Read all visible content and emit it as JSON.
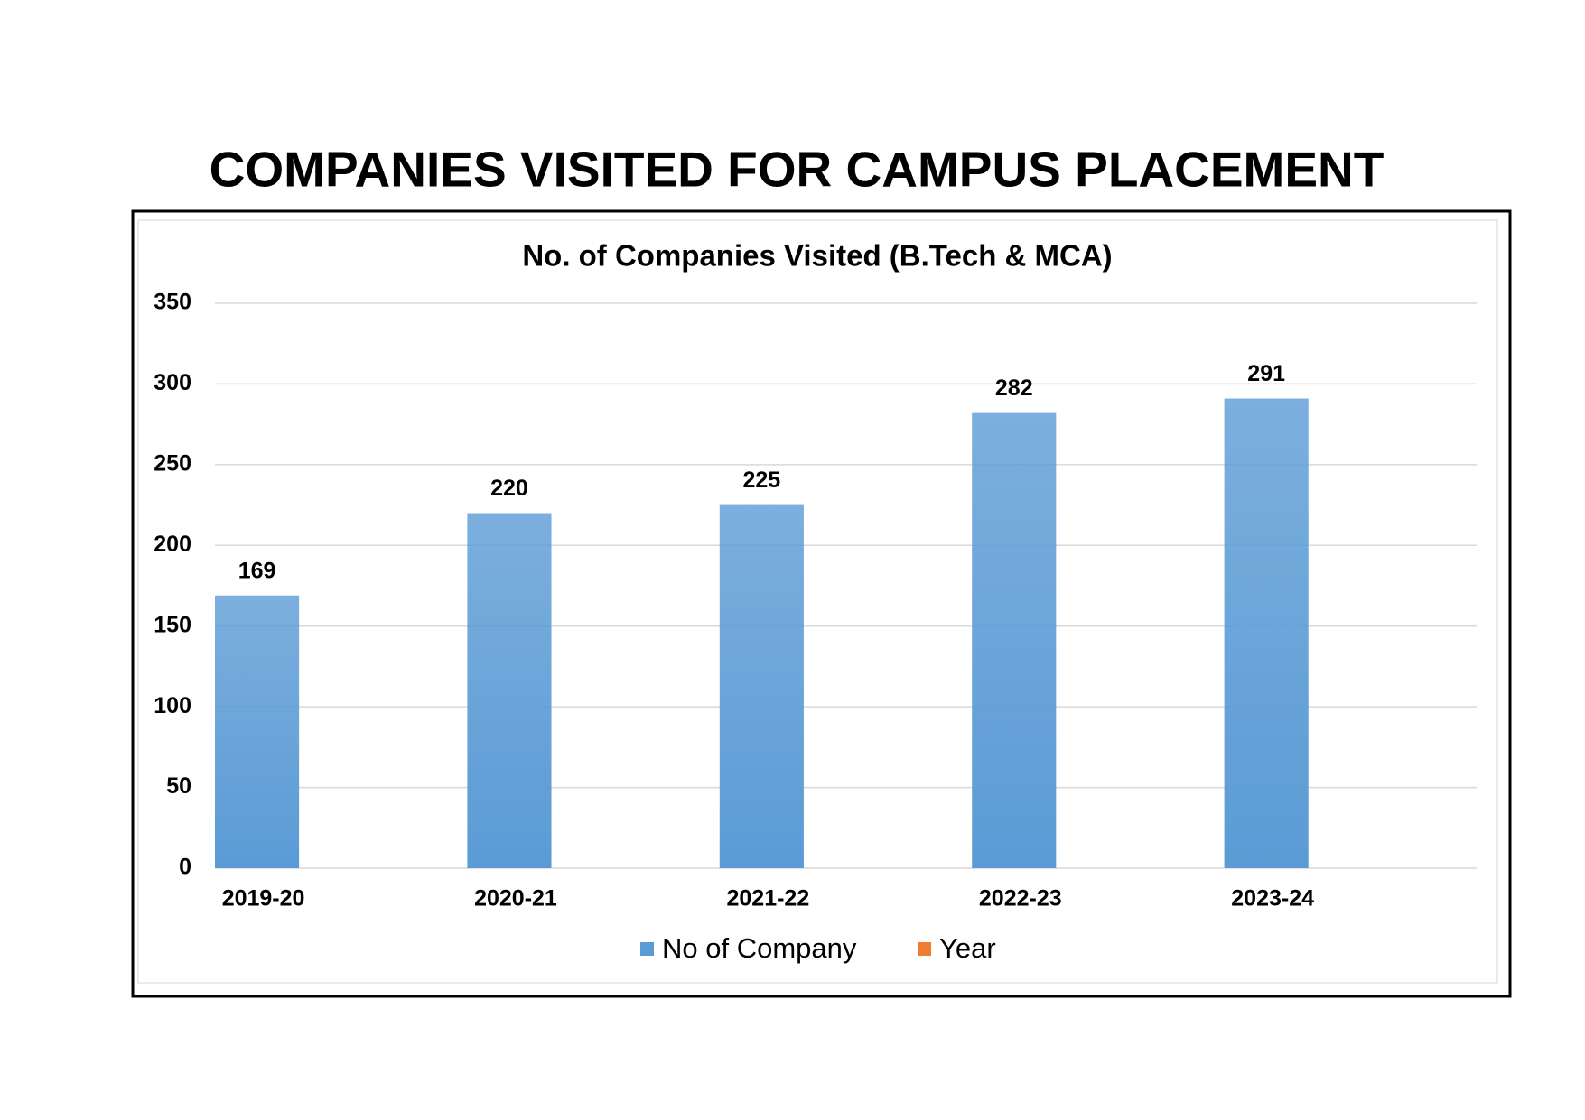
{
  "header": {
    "title": "COMPANIES VISITED FOR CAMPUS PLACEMENT"
  },
  "chart_data": {
    "type": "bar",
    "title": "No. of Companies Visited (B.Tech & MCA)",
    "categories": [
      "2019-20",
      "2020-21",
      "2021-22",
      "2022-23",
      "2023-24"
    ],
    "series": [
      {
        "name": "No of Company",
        "color": "#5b9bd5",
        "values": [
          169,
          220,
          225,
          282,
          291
        ]
      },
      {
        "name": "Year",
        "color": "#ed7d31",
        "values": [
          null,
          null,
          null,
          null,
          null
        ]
      }
    ],
    "ylim": [
      0,
      350
    ],
    "yticks": [
      0,
      50,
      100,
      150,
      200,
      250,
      300,
      350
    ],
    "grid": true,
    "legend": "bottom"
  }
}
